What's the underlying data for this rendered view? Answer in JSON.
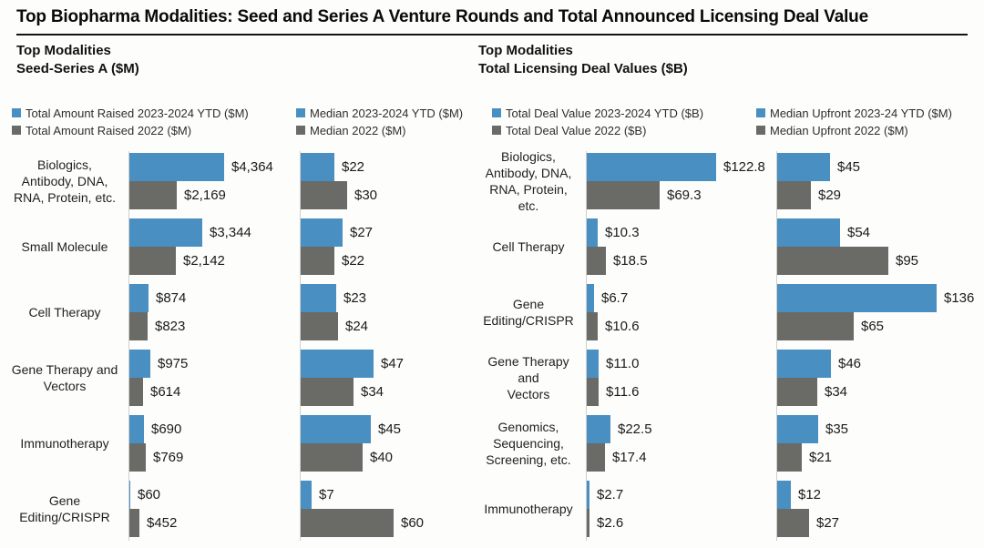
{
  "page": {
    "title": "Top Biopharma Modalities: Seed and Series A Venture Rounds and Total Announced Licensing Deal Value"
  },
  "colors": {
    "series_current": "#4a8fc2",
    "series_prior": "#6a6a67",
    "axis_line": "#cfcfcc"
  },
  "sections": [
    {
      "line1": "Top Modalities",
      "line2": "Seed-Series A ($M)"
    },
    {
      "line1": "Top Modalities",
      "line2": "Total Licensing Deal Values ($B)"
    }
  ],
  "chart_data": [
    {
      "type": "bar",
      "orientation": "horizontal",
      "id": "seed-total-raised",
      "legend": [
        "Total Amount Raised 2023-2024 YTD ($M)",
        "Total Amount Raised 2022 ($M)"
      ],
      "show_category_labels": true,
      "categories": [
        [
          "Biologics,",
          "Antibody, DNA,",
          "RNA, Protein, etc."
        ],
        [
          "Small Molecule"
        ],
        [
          "Cell Therapy"
        ],
        [
          "Gene Therapy and",
          "Vectors"
        ],
        [
          "Immunotherapy"
        ],
        [
          "Gene",
          "Editing/CRISPR"
        ]
      ],
      "series": [
        {
          "name": "Total Amount Raised 2023-2024 YTD ($M)",
          "color_key": "series_current",
          "values": [
            4364,
            3344,
            874,
            975,
            690,
            60
          ],
          "labels": [
            "$4,364",
            "$3,344",
            "$874",
            "$975",
            "$690",
            "$60"
          ]
        },
        {
          "name": "Total Amount Raised 2022 ($M)",
          "color_key": "series_prior",
          "values": [
            2169,
            2142,
            823,
            614,
            769,
            452
          ],
          "labels": [
            "$2,169",
            "$2,142",
            "$823",
            "$614",
            "$769",
            "$452"
          ]
        }
      ],
      "xlim": [
        0,
        4364
      ]
    },
    {
      "type": "bar",
      "orientation": "horizontal",
      "id": "seed-median",
      "legend": [
        "Median 2023-2024 YTD ($M)",
        "Median 2022 ($M)"
      ],
      "show_category_labels": false,
      "categories": [
        [
          "Biologics,",
          "Antibody, DNA,",
          "RNA, Protein, etc."
        ],
        [
          "Small Molecule"
        ],
        [
          "Cell Therapy"
        ],
        [
          "Gene Therapy and",
          "Vectors"
        ],
        [
          "Immunotherapy"
        ],
        [
          "Gene",
          "Editing/CRISPR"
        ]
      ],
      "series": [
        {
          "name": "Median 2023-2024 YTD ($M)",
          "color_key": "series_current",
          "values": [
            22,
            27,
            23,
            47,
            45,
            7
          ],
          "labels": [
            "$22",
            "$27",
            "$23",
            "$47",
            "$45",
            "$7"
          ]
        },
        {
          "name": "Median 2022 ($M)",
          "color_key": "series_prior",
          "values": [
            30,
            22,
            24,
            34,
            40,
            60
          ],
          "labels": [
            "$30",
            "$22",
            "$24",
            "$34",
            "$40",
            "$60"
          ]
        }
      ],
      "xlim": [
        0,
        60
      ]
    },
    {
      "type": "bar",
      "orientation": "horizontal",
      "id": "licensing-total-deal-value",
      "legend": [
        "Total Deal Value 2023-2024 YTD ($B)",
        "Total Deal Value 2022 ($B)"
      ],
      "show_category_labels": true,
      "categories": [
        [
          "Biologics,",
          "Antibody, DNA,",
          "RNA, Protein, etc."
        ],
        [
          "Cell Therapy"
        ],
        [
          "Gene",
          "Editing/CRISPR"
        ],
        [
          "Gene Therapy and",
          "Vectors"
        ],
        [
          "Genomics,",
          "Sequencing,",
          "Screening, etc."
        ],
        [
          "Immunotherapy"
        ]
      ],
      "series": [
        {
          "name": "Total Deal Value 2023-2024 YTD ($B)",
          "color_key": "series_current",
          "values": [
            122.8,
            10.3,
            6.7,
            11.0,
            22.5,
            2.7
          ],
          "labels": [
            "$122.8",
            "$10.3",
            "$6.7",
            "$11.0",
            "$22.5",
            "$2.7"
          ]
        },
        {
          "name": "Total Deal Value 2022 ($B)",
          "color_key": "series_prior",
          "values": [
            69.3,
            18.5,
            10.6,
            11.6,
            17.4,
            2.6
          ],
          "labels": [
            "$69.3",
            "$18.5",
            "$10.6",
            "$11.6",
            "$17.4",
            "$2.6"
          ]
        }
      ],
      "xlim": [
        0,
        122.8
      ]
    },
    {
      "type": "bar",
      "orientation": "horizontal",
      "id": "licensing-median-upfront",
      "legend": [
        "Median Upfront 2023-24 YTD ($M)",
        "Median Upfront 2022 ($M)"
      ],
      "show_category_labels": false,
      "categories": [
        [
          "Biologics,",
          "Antibody, DNA,",
          "RNA, Protein, etc."
        ],
        [
          "Cell Therapy"
        ],
        [
          "Gene",
          "Editing/CRISPR"
        ],
        [
          "Gene Therapy and",
          "Vectors"
        ],
        [
          "Genomics,",
          "Sequencing,",
          "Screening, etc."
        ],
        [
          "Immunotherapy"
        ]
      ],
      "series": [
        {
          "name": "Median Upfront 2023-24 YTD ($M)",
          "color_key": "series_current",
          "values": [
            45,
            54,
            136,
            46,
            35,
            12
          ],
          "labels": [
            "$45",
            "$54",
            "$136",
            "$46",
            "$35",
            "$12"
          ]
        },
        {
          "name": "Median Upfront 2022 ($M)",
          "color_key": "series_prior",
          "values": [
            29,
            95,
            65,
            34,
            21,
            27
          ],
          "labels": [
            "$29",
            "$95",
            "$65",
            "$34",
            "$21",
            "$27"
          ]
        }
      ],
      "xlim": [
        0,
        136
      ]
    }
  ]
}
